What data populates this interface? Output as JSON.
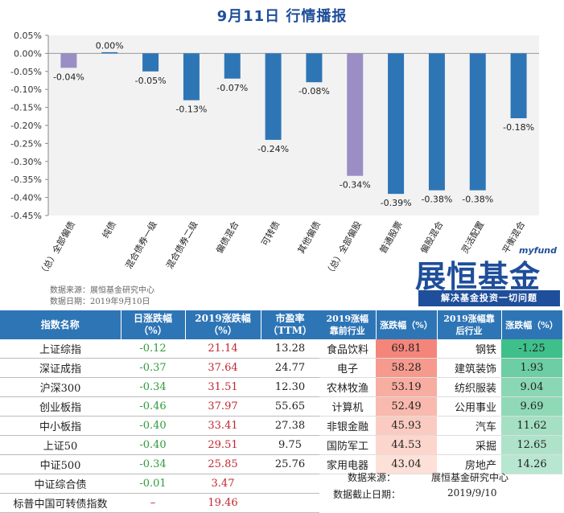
{
  "page_title": "9月11日  行情播报",
  "chart_data": {
    "type": "bar",
    "categories": [
      "（总）全部偏债",
      "纯债",
      "混合债券一级",
      "混合债券二级",
      "偏债混合",
      "可转债",
      "其他偏债",
      "（总）全部偏股",
      "普通股票",
      "偏股混合",
      "灵活配置",
      "平衡混合"
    ],
    "values": [
      -0.04,
      0.0,
      -0.05,
      -0.13,
      -0.07,
      -0.24,
      -0.08,
      -0.34,
      -0.39,
      -0.38,
      -0.38,
      -0.18
    ],
    "data_labels": [
      "-0.04%",
      "0.00%",
      "-0.05%",
      "-0.13%",
      "-0.07%",
      "-0.24%",
      "-0.08%",
      "-0.34%",
      "-0.39%",
      "-0.38%",
      "-0.38%",
      "-0.18%"
    ],
    "yticks": [
      0.05,
      0.0,
      -0.05,
      -0.1,
      -0.15,
      -0.2,
      -0.25,
      -0.3,
      -0.35,
      -0.4,
      -0.45
    ],
    "ytick_labels": [
      "0.05%",
      "0.00%",
      "-0.05%",
      "-0.10%",
      "-0.15%",
      "-0.20%",
      "-0.25%",
      "-0.30%",
      "-0.35%",
      "-0.40%",
      "-0.45%"
    ],
    "ylim": [
      -0.45,
      0.05
    ],
    "grid": false,
    "colors": {
      "default": "#2e75b6",
      "highlight": "#9b8ec4",
      "highlight_indices": [
        0,
        7
      ],
      "plot_bg": "#f2f2f2"
    }
  },
  "source_note": "数据来源：展恒基金研究中心",
  "date_note": "数据日期：2019年9月10日",
  "logo": {
    "small": "myfund",
    "big": "展恒基金",
    "slogan": "解决基金投资一切问题"
  },
  "index_table": {
    "headers": [
      "指数名称",
      "日涨跌幅（%）",
      "2019涨跌幅（%）",
      "市盈率（TTM）"
    ],
    "rows": [
      {
        "name": "上证综指",
        "day": "-0.12",
        "ytd": "21.14",
        "pe": "13.28"
      },
      {
        "name": "深证成指",
        "day": "-0.37",
        "ytd": "37.64",
        "pe": "24.77"
      },
      {
        "name": "沪深300",
        "day": "-0.34",
        "ytd": "31.51",
        "pe": "12.30"
      },
      {
        "name": "创业板指",
        "day": "-0.46",
        "ytd": "37.97",
        "pe": "55.65"
      },
      {
        "name": "中小板指",
        "day": "-0.40",
        "ytd": "33.41",
        "pe": "27.38"
      },
      {
        "name": "上证50",
        "day": "-0.40",
        "ytd": "29.51",
        "pe": "9.75"
      },
      {
        "name": "中证500",
        "day": "-0.34",
        "ytd": "25.85",
        "pe": "25.76"
      },
      {
        "name": "中证综合债",
        "day": "-0.01",
        "ytd": "3.47",
        "pe": ""
      },
      {
        "name": "标普中国可转债指数",
        "day": "–",
        "ytd": "19.46",
        "pe": ""
      }
    ]
  },
  "industry_table": {
    "headers": [
      "2019涨幅靠前行业",
      "涨跌幅（%）",
      "2019涨幅靠后行业",
      "涨跌幅（%）"
    ],
    "rows": [
      {
        "top": "食品饮料",
        "top_val": "69.81",
        "bottom": "钢铁",
        "bottom_val": "-1.25"
      },
      {
        "top": "电子",
        "top_val": "58.28",
        "bottom": "建筑装饰",
        "bottom_val": "1.93"
      },
      {
        "top": "农林牧渔",
        "top_val": "53.19",
        "bottom": "纺织服装",
        "bottom_val": "9.04"
      },
      {
        "top": "计算机",
        "top_val": "52.49",
        "bottom": "公用事业",
        "bottom_val": "9.69"
      },
      {
        "top": "非银金融",
        "top_val": "45.93",
        "bottom": "汽车",
        "bottom_val": "11.62"
      },
      {
        "top": "国防军工",
        "top_val": "44.53",
        "bottom": "采掘",
        "bottom_val": "12.65"
      },
      {
        "top": "家用电器",
        "top_val": "43.04",
        "bottom": "房地产",
        "bottom_val": "14.26"
      }
    ],
    "top_colors": [
      "#f4857a",
      "#f69a8e",
      "#f8ada1",
      "#f9b9ae",
      "#fbcbc1",
      "#fcd6cd",
      "#fde0d8"
    ],
    "bottom_colors": [
      "#3fbf8a",
      "#6ccea2",
      "#8ad7b4",
      "#8fd9b7",
      "#a5e0c4",
      "#aee3ca",
      "#b8e7d1"
    ]
  },
  "footer": {
    "source_label": "数据来源：",
    "source_value": "展恒基金研究中心",
    "date_label": "数据截止日期：",
    "date_value": "2019/9/10"
  }
}
